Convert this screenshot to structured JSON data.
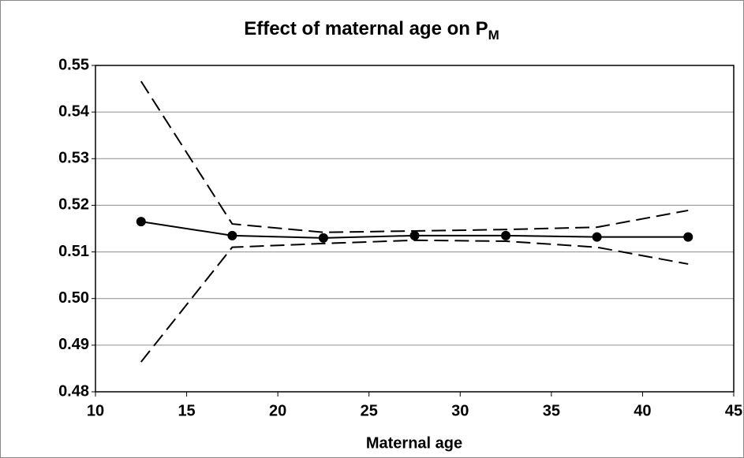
{
  "chart_data": {
    "type": "line",
    "title": "Effect of maternal age on P",
    "title_subscript": "M",
    "x_label": "Maternal age",
    "x": [
      12.5,
      17.5,
      22.5,
      27.5,
      32.5,
      37.5,
      42.5
    ],
    "series": [
      {
        "color": "#000000",
        "dashed": false,
        "markers": true,
        "values": [
          0.5165,
          0.5135,
          0.513,
          0.5135,
          0.5135,
          0.5132,
          0.5132
        ]
      },
      {
        "color": "#000000",
        "dashed": true,
        "markers": false,
        "values": [
          0.5466,
          0.516,
          0.5142,
          0.5145,
          0.5148,
          0.5153,
          0.5189
        ]
      },
      {
        "color": "#000000",
        "dashed": true,
        "markers": false,
        "values": [
          0.4864,
          0.511,
          0.5118,
          0.5125,
          0.5123,
          0.511,
          0.5074
        ]
      }
    ],
    "xlim": [
      10,
      45
    ],
    "xticks": [
      10,
      15,
      20,
      25,
      30,
      35,
      40,
      45
    ],
    "ylim": [
      0.48,
      0.55
    ],
    "yticks": [
      {
        "value": 0.48,
        "label": "0.48"
      },
      {
        "value": 0.49,
        "label": "0.49"
      },
      {
        "value": 0.5,
        "label": "0.50"
      },
      {
        "value": 0.51,
        "label": "0.51"
      },
      {
        "value": 0.52,
        "label": "0.52"
      },
      {
        "value": 0.53,
        "label": "0.53"
      },
      {
        "value": 0.54,
        "label": "0.54"
      },
      {
        "value": 0.55,
        "label": "0.55"
      }
    ],
    "grid": true
  }
}
